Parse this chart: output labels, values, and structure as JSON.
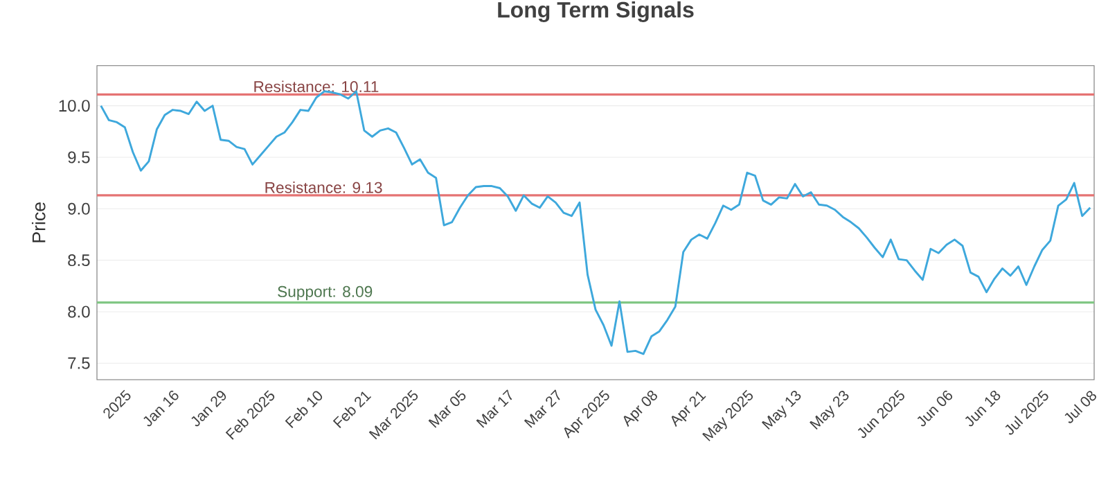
{
  "chart_data": {
    "type": "line",
    "title": "Long Term Signals",
    "ylabel": "Price",
    "categories": [
      null,
      null,
      null,
      "2025",
      null,
      null,
      null,
      null,
      null,
      "Jan 16",
      null,
      null,
      null,
      null,
      null,
      "Jan 29",
      null,
      null,
      null,
      null,
      null,
      "Feb 2025",
      null,
      null,
      null,
      null,
      null,
      "Feb 10",
      null,
      null,
      null,
      null,
      null,
      "Feb 21",
      null,
      null,
      null,
      null,
      null,
      "Mar 2025",
      null,
      null,
      null,
      null,
      null,
      "Mar 05",
      null,
      null,
      null,
      null,
      null,
      "Mar 17",
      null,
      null,
      null,
      null,
      null,
      "Mar 27",
      null,
      null,
      null,
      null,
      null,
      "Apr 2025",
      null,
      null,
      null,
      null,
      null,
      "Apr 08",
      null,
      null,
      null,
      null,
      null,
      "Apr 21",
      null,
      null,
      null,
      null,
      null,
      "May 2025",
      null,
      null,
      null,
      null,
      null,
      "May 13",
      null,
      null,
      null,
      null,
      null,
      "May 23",
      null,
      null,
      null,
      null,
      null,
      null,
      "Jun 2025",
      null,
      null,
      null,
      null,
      null,
      "Jun 06",
      null,
      null,
      null,
      null,
      null,
      "Jun 18",
      null,
      null,
      null,
      null,
      null,
      "Jul 2025",
      null,
      null,
      null,
      null,
      null,
      "Jul 08"
    ],
    "series": [
      {
        "color": "#3ea8dc",
        "values": [
          10.0,
          9.86,
          9.84,
          9.79,
          9.55,
          9.37,
          9.46,
          9.77,
          9.91,
          9.96,
          9.95,
          9.92,
          10.04,
          9.95,
          10.0,
          9.67,
          9.66,
          9.6,
          9.58,
          9.43,
          9.52,
          9.61,
          9.7,
          9.74,
          9.84,
          9.96,
          9.95,
          10.08,
          10.14,
          10.13,
          10.11,
          10.07,
          10.14,
          9.76,
          9.7,
          9.76,
          9.78,
          9.74,
          9.59,
          9.43,
          9.48,
          9.35,
          9.3,
          8.84,
          8.87,
          9.01,
          9.13,
          9.21,
          9.22,
          9.22,
          9.2,
          9.12,
          8.98,
          9.13,
          9.05,
          9.01,
          9.12,
          9.06,
          8.96,
          8.93,
          9.06,
          8.36,
          8.02,
          7.87,
          7.67,
          8.1,
          7.61,
          7.62,
          7.59,
          7.76,
          7.81,
          7.92,
          8.05,
          8.58,
          8.7,
          8.75,
          8.71,
          8.86,
          9.03,
          8.99,
          9.04,
          9.35,
          9.32,
          9.08,
          9.04,
          9.11,
          9.1,
          9.24,
          9.12,
          9.16,
          9.04,
          9.03,
          8.99,
          8.92,
          8.87,
          8.81,
          8.72,
          8.62,
          8.53,
          8.7,
          8.51,
          8.5,
          8.4,
          8.31,
          8.61,
          8.57,
          8.65,
          8.7,
          8.64,
          8.38,
          8.34,
          8.19,
          8.32,
          8.42,
          8.35,
          8.44,
          8.26,
          8.44,
          8.6,
          8.69,
          9.03,
          9.09,
          9.25,
          8.93,
          9.01
        ]
      }
    ],
    "ylim": [
      7.34,
      10.39
    ],
    "yticks": [
      {
        "value": 7.5,
        "label": "7.5"
      },
      {
        "value": 8.0,
        "label": "8.0"
      },
      {
        "value": 8.5,
        "label": "8.5"
      },
      {
        "value": 9.0,
        "label": "9.0"
      },
      {
        "value": 9.5,
        "label": "9.5"
      },
      {
        "value": 10.0,
        "label": "10.0"
      }
    ],
    "grid": "y",
    "marker": "none",
    "line_style": "solid",
    "ref_lines": [
      {
        "axis": "y",
        "value": 10.11,
        "label": "Resistance: 10.11",
        "color": "#e57373"
      },
      {
        "axis": "y",
        "value": 9.13,
        "label": "Resistance: 9.13",
        "color": "#e57373"
      },
      {
        "axis": "y",
        "value": 8.09,
        "label": "Support: 8.09",
        "color": "#81c784"
      }
    ]
  }
}
